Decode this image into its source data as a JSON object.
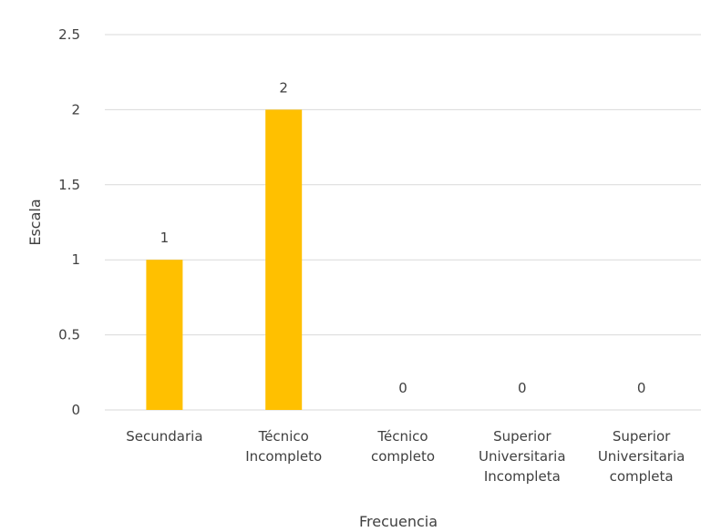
{
  "chart_data": {
    "type": "bar",
    "title": "",
    "xlabel": "Frecuencia",
    "ylabel": "Escala",
    "categories": [
      [
        "Secundaria"
      ],
      [
        "Técnico",
        "Incompleto"
      ],
      [
        "Técnico",
        "completo"
      ],
      [
        "Superior",
        "Universitaria",
        "Incompleta"
      ],
      [
        "Superior",
        "Universitaria",
        "completa"
      ]
    ],
    "values": [
      1,
      2,
      0,
      0,
      0
    ],
    "data_labels": [
      "1",
      "2",
      "0",
      "0",
      "0"
    ],
    "ylim": [
      0,
      2.5
    ],
    "yticks": [
      0,
      0.5,
      1,
      1.5,
      2,
      2.5
    ],
    "ytick_labels": [
      "0",
      "0.5",
      "1",
      "1.5",
      "2",
      "2.5"
    ],
    "grid": true,
    "legend": "none",
    "colors": {
      "bar": "#FFC000",
      "grid": "#D9D9D9",
      "text": "#404040"
    }
  }
}
